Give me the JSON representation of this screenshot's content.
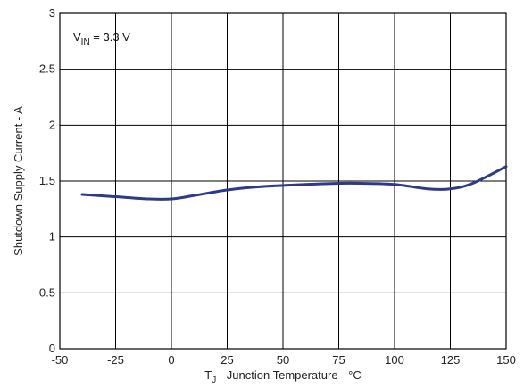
{
  "chart_data": {
    "type": "line",
    "title": "",
    "xlabel_main": "T",
    "xlabel_sub": "J",
    "xlabel_rest": " - Junction Temperature - °C",
    "ylabel": "Shutdown Supply Current -   A",
    "xlim": [
      -50,
      150
    ],
    "ylim": [
      0,
      3
    ],
    "x_ticks": [
      -50,
      -25,
      0,
      25,
      50,
      75,
      100,
      125,
      150
    ],
    "y_ticks": [
      0,
      0.5,
      1,
      1.5,
      2,
      2.5,
      3
    ],
    "x_tick_labels": [
      "-50",
      "-25",
      "0",
      "25",
      "50",
      "75",
      "100",
      "125",
      "150"
    ],
    "y_tick_labels": [
      "0",
      "0.5",
      "1",
      "1.5",
      "2",
      "2.5",
      "3"
    ],
    "grid": true,
    "annotation": {
      "main": "V",
      "sub": "IN",
      "rest": " = 3.3 V"
    },
    "series": [
      {
        "color": "#2b3a8c",
        "x": [
          -40,
          -25,
          -10,
          0,
          10,
          25,
          40,
          60,
          75,
          85,
          100,
          115,
          125,
          135,
          150
        ],
        "y": [
          1.38,
          1.36,
          1.34,
          1.34,
          1.37,
          1.42,
          1.45,
          1.47,
          1.48,
          1.48,
          1.47,
          1.43,
          1.43,
          1.48,
          1.63
        ]
      }
    ]
  }
}
